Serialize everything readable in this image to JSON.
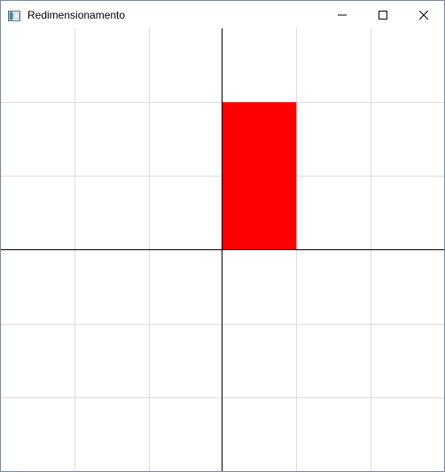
{
  "window": {
    "title": "Redimensionamento",
    "icon": "app-window-icon",
    "controls": [
      "minimize-icon",
      "maximize-icon",
      "close-icon"
    ]
  },
  "canvas": {
    "grid_divisions": 6,
    "grid_color": "#dcdcdc",
    "axis_color": "#000000",
    "rectangle": {
      "fill": "#ff0000",
      "x_from": 0,
      "x_to": 1,
      "y_from": 0,
      "y_to": 2
    },
    "x_range": [
      -3,
      3
    ],
    "y_range": [
      -3,
      3
    ]
  }
}
